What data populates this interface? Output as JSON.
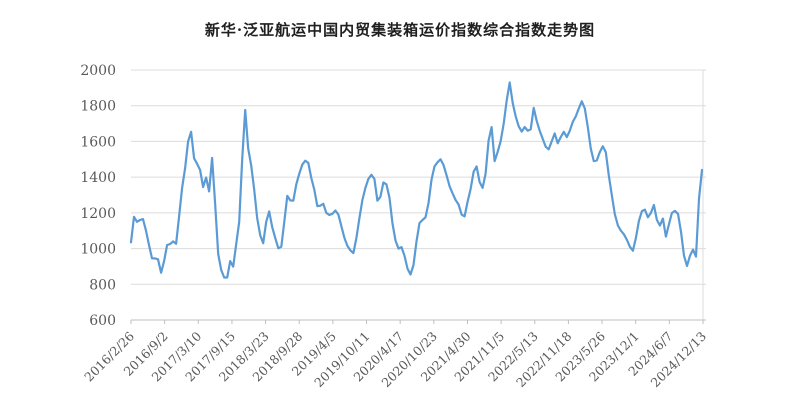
{
  "chart_data": {
    "type": "line",
    "title": "新华·泛亚航运中国内贸集装箱运价指数综合指数走势图",
    "xlabel": "",
    "ylabel": "",
    "ylim": [
      600,
      2000
    ],
    "y_ticks": [
      2000,
      1800,
      1600,
      1400,
      1200,
      1000,
      800,
      600
    ],
    "x_tick_labels": [
      "2016/2/26",
      "2016/9/2",
      "2017/3/10",
      "2017/9/15",
      "2018/3/23",
      "2018/9/28",
      "2019/4/5",
      "2019/10/11",
      "2020/4/17",
      "2020/10/23",
      "2021/4/30",
      "2021/11/5",
      "2022/5/13",
      "2022/11/18",
      "2023/5/26",
      "2023/12/1",
      "2024/6/7",
      "2024/12/13"
    ],
    "grid": "horizontal",
    "legend_position": "none",
    "colors": {
      "line": "#5B9BD5",
      "gridline": "#DCDCDC",
      "axis": "#BFBFBF",
      "tick_label": "#595959",
      "title": "#1F1F1F",
      "background": "#FFFFFF"
    },
    "series": [
      {
        "name": "综合指数",
        "values": [
          1035,
          1178,
          1150,
          1160,
          1165,
          1100,
          1020,
          945,
          945,
          940,
          865,
          930,
          1020,
          1025,
          1040,
          1027,
          1180,
          1340,
          1450,
          1600,
          1654,
          1505,
          1475,
          1440,
          1345,
          1398,
          1320,
          1507,
          1254,
          970,
          880,
          838,
          838,
          930,
          899,
          1025,
          1150,
          1500,
          1776,
          1560,
          1465,
          1330,
          1170,
          1075,
          1030,
          1150,
          1208,
          1120,
          1058,
          1002,
          1010,
          1150,
          1295,
          1270,
          1268,
          1360,
          1420,
          1470,
          1492,
          1480,
          1395,
          1330,
          1238,
          1240,
          1251,
          1200,
          1188,
          1195,
          1213,
          1190,
          1125,
          1060,
          1015,
          990,
          975,
          1060,
          1170,
          1272,
          1340,
          1390,
          1413,
          1390,
          1268,
          1290,
          1370,
          1360,
          1284,
          1140,
          1045,
          1000,
          1008,
          960,
          888,
          855,
          908,
          1040,
          1143,
          1160,
          1175,
          1254,
          1385,
          1460,
          1483,
          1500,
          1468,
          1410,
          1349,
          1309,
          1272,
          1247,
          1190,
          1180,
          1263,
          1333,
          1430,
          1460,
          1373,
          1340,
          1420,
          1605,
          1680,
          1490,
          1540,
          1600,
          1700,
          1830,
          1930,
          1815,
          1740,
          1685,
          1655,
          1681,
          1660,
          1668,
          1788,
          1715,
          1660,
          1615,
          1570,
          1556,
          1600,
          1645,
          1590,
          1625,
          1654,
          1624,
          1660,
          1710,
          1740,
          1785,
          1825,
          1785,
          1680,
          1560,
          1490,
          1494,
          1540,
          1573,
          1540,
          1410,
          1300,
          1193,
          1129,
          1100,
          1080,
          1049,
          1010,
          988,
          1060,
          1155,
          1210,
          1218,
          1175,
          1200,
          1244,
          1160,
          1129,
          1168,
          1067,
          1135,
          1200,
          1211,
          1195,
          1094,
          960,
          903,
          960,
          994,
          955,
          1280,
          1440
        ]
      }
    ]
  }
}
